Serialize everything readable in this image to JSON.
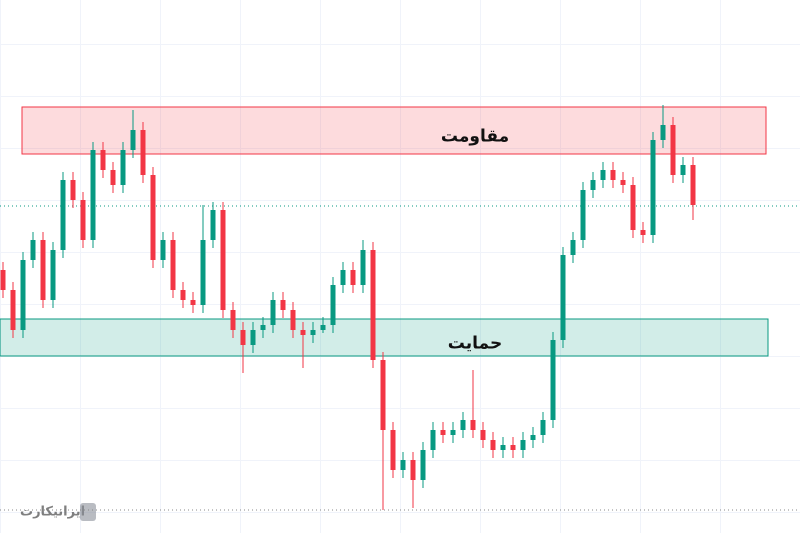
{
  "chart_data": {
    "type": "candlestick",
    "ylim": [
      0,
      533
    ],
    "up_color": "#089981",
    "down_color": "#f23645",
    "open": [
      263,
      243,
      203,
      273,
      293,
      233,
      283,
      353,
      333,
      293,
      383,
      363,
      348,
      383,
      403,
      358,
      273,
      293,
      243,
      233,
      228,
      293,
      323,
      223,
      203,
      188,
      203,
      208,
      233,
      223,
      203,
      198,
      203,
      208,
      248,
      263,
      248,
      283,
      173,
      103,
      63,
      73,
      53,
      83,
      103,
      98,
      103,
      113,
      103,
      93,
      83,
      88,
      83,
      93,
      98,
      113,
      193,
      278,
      293,
      343,
      353,
      363,
      353,
      348,
      303,
      298,
      393,
      408,
      358,
      368
    ],
    "high": [
      271,
      251,
      281,
      301,
      301,
      291,
      361,
      361,
      341,
      391,
      391,
      371,
      391,
      423,
      411,
      366,
      301,
      301,
      251,
      241,
      328,
      331,
      331,
      231,
      211,
      211,
      216,
      241,
      241,
      231,
      211,
      211,
      216,
      256,
      271,
      271,
      293,
      291,
      181,
      111,
      81,
      81,
      91,
      111,
      111,
      111,
      121,
      163,
      111,
      101,
      96,
      96,
      101,
      106,
      121,
      201,
      286,
      301,
      351,
      361,
      371,
      371,
      361,
      356,
      311,
      401,
      428,
      416,
      376,
      376
    ],
    "low": [
      235,
      195,
      195,
      265,
      225,
      225,
      275,
      325,
      285,
      285,
      355,
      340,
      340,
      375,
      350,
      265,
      265,
      235,
      225,
      220,
      220,
      285,
      215,
      195,
      160,
      180,
      195,
      200,
      215,
      195,
      165,
      190,
      200,
      200,
      240,
      240,
      240,
      165,
      23,
      55,
      55,
      25,
      45,
      75,
      90,
      90,
      95,
      95,
      85,
      75,
      75,
      75,
      75,
      85,
      90,
      105,
      185,
      270,
      285,
      335,
      345,
      345,
      340,
      295,
      290,
      290,
      385,
      350,
      350,
      313
    ],
    "close": [
      243,
      203,
      273,
      293,
      233,
      283,
      353,
      333,
      293,
      383,
      363,
      348,
      383,
      403,
      358,
      273,
      293,
      243,
      233,
      228,
      293,
      323,
      223,
      203,
      188,
      203,
      208,
      233,
      223,
      203,
      198,
      203,
      208,
      248,
      263,
      248,
      283,
      173,
      103,
      63,
      73,
      53,
      83,
      103,
      98,
      103,
      113,
      103,
      93,
      83,
      88,
      83,
      93,
      98,
      113,
      193,
      278,
      293,
      343,
      353,
      363,
      353,
      348,
      303,
      298,
      393,
      408,
      358,
      368,
      328
    ],
    "zones": [
      {
        "label": "مقاومت",
        "low": 379,
        "high": 426,
        "color": "#f23645"
      },
      {
        "label": "حمایت",
        "low": 177,
        "high": 214,
        "color": "#089981"
      }
    ],
    "price_line": 327,
    "low_line": 23,
    "watermark": "ایرانیکارت"
  }
}
